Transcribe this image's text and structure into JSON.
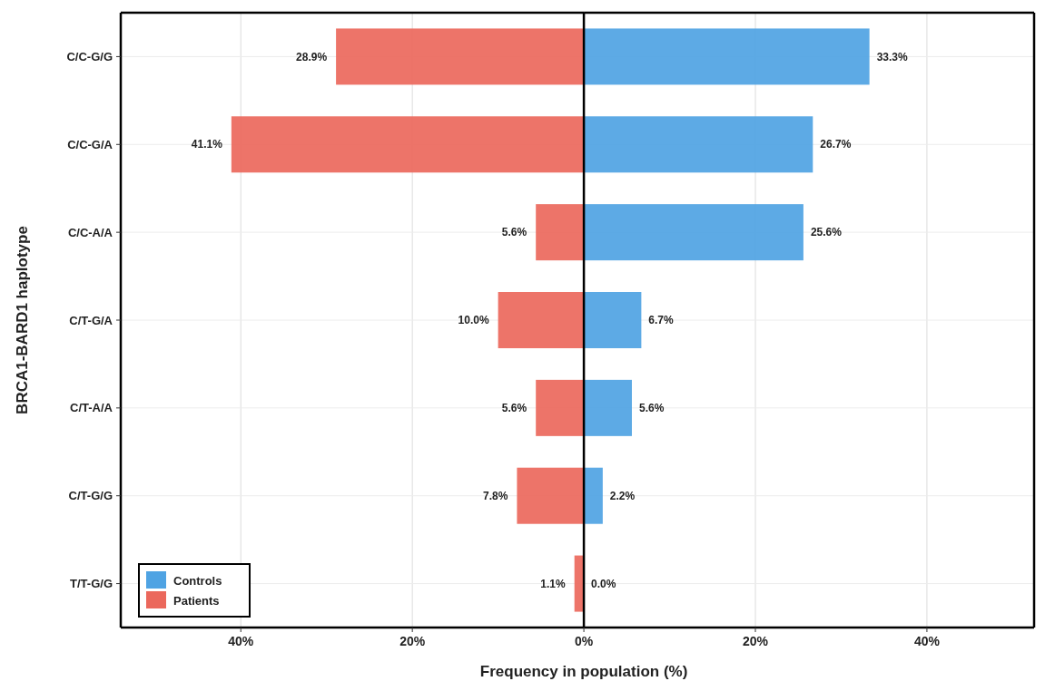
{
  "chart_data": [
    {
      "type": "bar",
      "orientation": "horizontal",
      "xlabel": "Frequency in population (%)",
      "ylabel": "BRCA1-BARD1 haplotype",
      "categories": [
        "C/C-G/G",
        "C/C-G/A",
        "C/C-A/A",
        "C/T-G/A",
        "C/T-A/A",
        "C/T-G/G",
        "T/T-G/G"
      ],
      "series": [
        {
          "name": "Controls",
          "color": "#4fa3e3",
          "values": [
            null,
            null,
            null,
            null,
            null,
            null,
            null
          ]
        },
        {
          "name": "Patients",
          "color": "#eb685c",
          "values": [
            28.9,
            41.1,
            5.6,
            10.0,
            5.6,
            7.8,
            1.1
          ],
          "value_labels": [
            "28.9%",
            "41.1%",
            "5.6%",
            "10.0%",
            "5.6%",
            "7.8%",
            "1.1%"
          ]
        }
      ],
      "xlim": [
        54,
        0
      ],
      "xticks": [
        {
          "value": 40,
          "label": "40%"
        },
        {
          "value": 20,
          "label": "20%"
        }
      ],
      "grid": true,
      "legend": "bottom left"
    },
    {
      "type": "bar",
      "orientation": "horizontal",
      "categories": [
        null,
        null,
        null,
        null,
        null,
        null,
        null
      ],
      "series": [
        {
          "color": "#4fa3e3",
          "values": [
            33.3,
            26.7,
            25.6,
            6.7,
            5.6,
            2.2,
            0.0
          ],
          "value_labels": [
            "33.3%",
            "26.7%",
            "25.6%",
            "6.7%",
            "5.6%",
            "2.2%",
            "0.0%"
          ]
        }
      ],
      "xlim": [
        0,
        52.5
      ],
      "xticks": [
        {
          "value": 0,
          "label": "0%"
        },
        {
          "value": 20,
          "label": "20%"
        },
        {
          "value": 40,
          "label": "40%"
        }
      ],
      "grid": true,
      "tick_labels": "x"
    }
  ]
}
